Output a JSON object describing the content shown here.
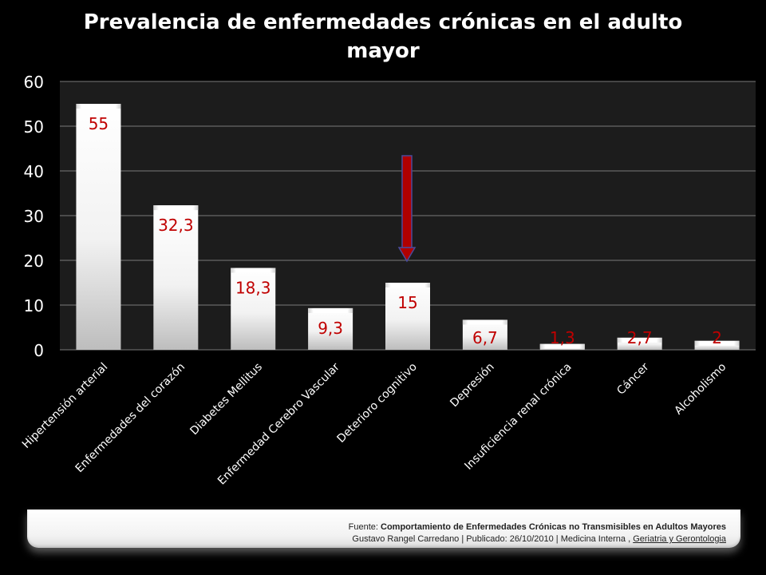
{
  "chart_data": {
    "type": "bar",
    "title": "Prevalencia de enfermedades crónicas en el adulto mayor",
    "categories": [
      "Hipertensión arterial",
      "Enfermedades del corazón",
      "Diabetes Mellitus",
      "Enfermedad Cerebro Vascular",
      "Deterioro cognitivo",
      "Depresión",
      "Insuficiencia renal crónica",
      "Cáncer",
      "Alcoholismo"
    ],
    "values": [
      55,
      32.3,
      18.3,
      9.3,
      15,
      6.7,
      1.3,
      2.7,
      2
    ],
    "data_labels": [
      "55",
      "32,3",
      "18,3",
      "9,3",
      "15",
      "6,7",
      "1,3",
      "2,7",
      "2"
    ],
    "yticks": [
      "0",
      "10",
      "20",
      "30",
      "40",
      "50",
      "60"
    ],
    "ylim": [
      0,
      60
    ],
    "grid": true,
    "xlabel": "",
    "ylabel": "",
    "highlight_category": "Deterioro cognitivo",
    "colors": {
      "background": "#000000",
      "bar": "#ffffff",
      "plot_bg": "#1c1c1c",
      "label": "#c00000",
      "arrow": "#b00000",
      "arrow_outline": "#4a4a9a"
    }
  },
  "source": {
    "prefix": "Fuente: ",
    "title": "Comportamiento de Enfermedades Crónicas no Transmisibles en Adultos Mayores",
    "line2": "Gustavo Rangel Carredano | Publicado: 26/10/2010 | Medicina Interna , ",
    "link": "Geriatria y Gerontologia"
  }
}
